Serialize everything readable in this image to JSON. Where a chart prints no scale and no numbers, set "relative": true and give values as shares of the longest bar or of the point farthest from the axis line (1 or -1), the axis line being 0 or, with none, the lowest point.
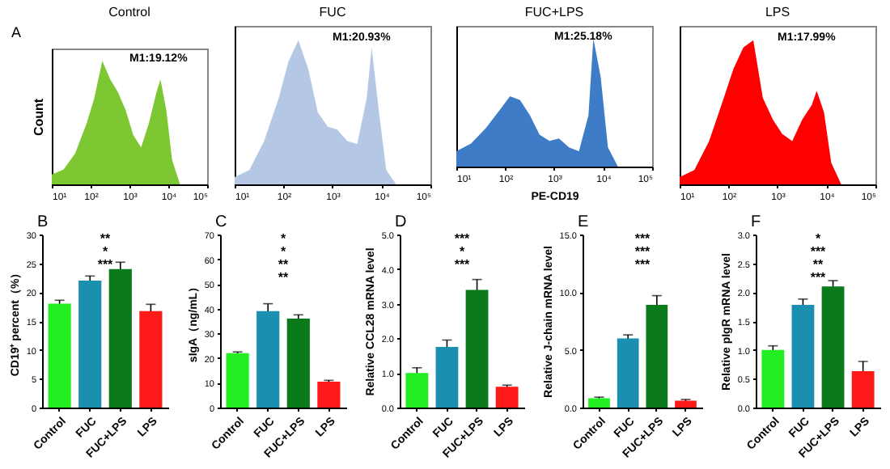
{
  "chart_data": [
    {
      "type": "area",
      "title": "Control",
      "ylabel": "Count",
      "relative": true,
      "log": "x",
      "xlim": [
        10,
        100000
      ],
      "xticks": [
        {
          "value": 10,
          "label": "10¹"
        },
        {
          "value": 100,
          "label": "10²"
        },
        {
          "value": 1000,
          "label": "10³"
        },
        {
          "value": 10000,
          "label": "10⁴"
        },
        {
          "value": 100000,
          "label": "10⁵"
        }
      ],
      "x": [
        10,
        20,
        40,
        80,
        125,
        200,
        320,
        500,
        800,
        1250,
        2000,
        3200,
        5000,
        6300,
        8900,
        12500,
        20000
      ],
      "series": [
        {
          "color": "#7dc832",
          "values": [
            0.08,
            0.12,
            0.25,
            0.5,
            0.7,
            1,
            0.85,
            0.75,
            0.6,
            0.4,
            0.3,
            0.5,
            0.75,
            0.85,
            0.6,
            0.2,
            0
          ]
        }
      ],
      "annotations": [
        "A",
        "M1:19.12%"
      ]
    },
    {
      "type": "area",
      "title": "FUC",
      "relative": true,
      "log": "x",
      "xlim": [
        10,
        100000
      ],
      "xticks": [
        {
          "value": 10,
          "label": "10¹"
        },
        {
          "value": 100,
          "label": "10²"
        },
        {
          "value": 1000,
          "label": "10³"
        },
        {
          "value": 10000,
          "label": "10⁴"
        },
        {
          "value": 100000,
          "label": "10⁵"
        }
      ],
      "x": [
        10,
        20,
        40,
        80,
        125,
        200,
        320,
        500,
        800,
        1250,
        2000,
        3200,
        5000,
        6300,
        8900,
        12500,
        20000
      ],
      "series": [
        {
          "color": "#b4c8e6",
          "values": [
            0.05,
            0.1,
            0.3,
            0.6,
            0.85,
            1,
            0.8,
            0.5,
            0.4,
            0.38,
            0.3,
            0.28,
            0.6,
            0.95,
            0.5,
            0.1,
            0
          ]
        }
      ],
      "annotations": [
        "M1:20.93%"
      ]
    },
    {
      "type": "area",
      "title": "FUC+LPS",
      "xlabel": "PE-CD19",
      "relative": true,
      "log": "x",
      "xlim": [
        10,
        100000
      ],
      "xticks": [
        {
          "value": 10,
          "label": "10¹"
        },
        {
          "value": 100,
          "label": "10²"
        },
        {
          "value": 1000,
          "label": "10³"
        },
        {
          "value": 10000,
          "label": "10⁴"
        },
        {
          "value": 100000,
          "label": "10⁵"
        }
      ],
      "x": [
        10,
        20,
        40,
        80,
        125,
        200,
        320,
        500,
        800,
        1250,
        2000,
        3200,
        5000,
        6300,
        8900,
        12500,
        20000
      ],
      "series": [
        {
          "color": "#3f7cc8",
          "values": [
            0.12,
            0.18,
            0.3,
            0.45,
            0.55,
            0.52,
            0.4,
            0.25,
            0.2,
            0.22,
            0.15,
            0.12,
            0.4,
            1,
            0.7,
            0.15,
            0
          ]
        }
      ],
      "annotations": [
        "M1:25.18%"
      ]
    },
    {
      "type": "area",
      "title": "LPS",
      "relative": true,
      "log": "x",
      "xlim": [
        10,
        100000
      ],
      "xticks": [
        {
          "value": 10,
          "label": "10¹"
        },
        {
          "value": 100,
          "label": "10²"
        },
        {
          "value": 1000,
          "label": "10³"
        },
        {
          "value": 10000,
          "label": "10⁴"
        },
        {
          "value": 100000,
          "label": "10⁵"
        }
      ],
      "x": [
        10,
        20,
        40,
        80,
        125,
        200,
        320,
        500,
        800,
        1250,
        2000,
        3200,
        5000,
        6300,
        8900,
        12500,
        20000
      ],
      "series": [
        {
          "color": "#ff0000",
          "values": [
            0.05,
            0.1,
            0.3,
            0.6,
            0.8,
            0.95,
            1,
            0.6,
            0.45,
            0.35,
            0.3,
            0.45,
            0.55,
            0.65,
            0.5,
            0.15,
            0
          ]
        }
      ],
      "annotations": [
        "M1:17.99%"
      ]
    },
    {
      "type": "bar",
      "title": "B",
      "ylabel": "CD19⁺ percent（%）",
      "categories": [
        "Control",
        "FUC",
        "FUC+LPS",
        "LPS"
      ],
      "values": [
        18,
        22,
        24,
        16.7
      ],
      "errors": [
        0.6,
        0.8,
        1.2,
        1.2
      ],
      "colors": [
        "#22ee22",
        "#1a8fb0",
        "#0a7a1a",
        "#ff1a1a"
      ],
      "ylim": [
        0,
        30
      ],
      "yticks": [
        0,
        5,
        10,
        15,
        20,
        25,
        30
      ],
      "annotations": [
        "**",
        "*",
        "***"
      ]
    },
    {
      "type": "bar",
      "title": "C",
      "ylabel": "sIgA（ng/mL）",
      "categories": [
        "Control",
        "FUC",
        "FUC+LPS",
        "LPS"
      ],
      "values": [
        22,
        39,
        36,
        10.5
      ],
      "errors": [
        0.5,
        3,
        1.5,
        0.5
      ],
      "colors": [
        "#22ee22",
        "#1a8fb0",
        "#0a7a1a",
        "#ff1a1a"
      ],
      "ylim": [
        0,
        70
      ],
      "yticks": [
        0,
        10,
        20,
        30,
        40,
        50,
        60,
        70
      ],
      "annotations": [
        "*",
        "*",
        "**",
        "**"
      ]
    },
    {
      "type": "bar",
      "title": "D",
      "ylabel": "Relative CCL28 mRNA level",
      "categories": [
        "Control",
        "FUC",
        "FUC+LPS",
        "LPS"
      ],
      "values": [
        1.0,
        1.75,
        3.4,
        0.6
      ],
      "errors": [
        0.15,
        0.2,
        0.3,
        0.05
      ],
      "colors": [
        "#22ee22",
        "#1a8fb0",
        "#0a7a1a",
        "#ff1a1a"
      ],
      "ylim": [
        0,
        5
      ],
      "yticks": [
        {
          "value": 0,
          "label": "0.0"
        },
        {
          "value": 1,
          "label": "1.0"
        },
        {
          "value": 2,
          "label": "2.0"
        },
        {
          "value": 3,
          "label": "3.0"
        },
        {
          "value": 4,
          "label": "4.0"
        },
        {
          "value": 5,
          "label": "5.0"
        }
      ],
      "annotations": [
        "***",
        "*",
        "***"
      ]
    },
    {
      "type": "bar",
      "title": "E",
      "ylabel": "Relative J-chain mRNA level",
      "categories": [
        "Control",
        "FUC",
        "FUC+LPS",
        "LPS"
      ],
      "values": [
        0.8,
        6.0,
        8.9,
        0.6
      ],
      "errors": [
        0.1,
        0.3,
        0.8,
        0.1
      ],
      "colors": [
        "#22ee22",
        "#1a8fb0",
        "#0a7a1a",
        "#ff1a1a"
      ],
      "ylim": [
        0,
        15
      ],
      "yticks": [
        {
          "value": 0,
          "label": "0.0"
        },
        {
          "value": 5,
          "label": "5.0"
        },
        {
          "value": 10,
          "label": "10.0"
        },
        {
          "value": 15,
          "label": "15.0"
        }
      ],
      "annotations": [
        "***",
        "***",
        "***"
      ]
    },
    {
      "type": "bar",
      "title": "F",
      "ylabel": "Relative pIgR mRNA level",
      "categories": [
        "Control",
        "FUC",
        "FUC+LPS",
        "LPS"
      ],
      "values": [
        1.0,
        1.78,
        2.1,
        0.63
      ],
      "errors": [
        0.07,
        0.1,
        0.1,
        0.17
      ],
      "colors": [
        "#22ee22",
        "#1a8fb0",
        "#0a7a1a",
        "#ff1a1a"
      ],
      "ylim": [
        0,
        3
      ],
      "yticks": [
        {
          "value": 0,
          "label": "0.0"
        },
        {
          "value": 0.5,
          "label": "0.5"
        },
        {
          "value": 1,
          "label": "1.0"
        },
        {
          "value": 1.5,
          "label": "1.5"
        },
        {
          "value": 2,
          "label": "2.0"
        },
        {
          "value": 2.5,
          "label": "2.5"
        },
        {
          "value": 3,
          "label": "3.0"
        }
      ],
      "annotations": [
        "*",
        "***",
        "**",
        "***"
      ]
    }
  ]
}
